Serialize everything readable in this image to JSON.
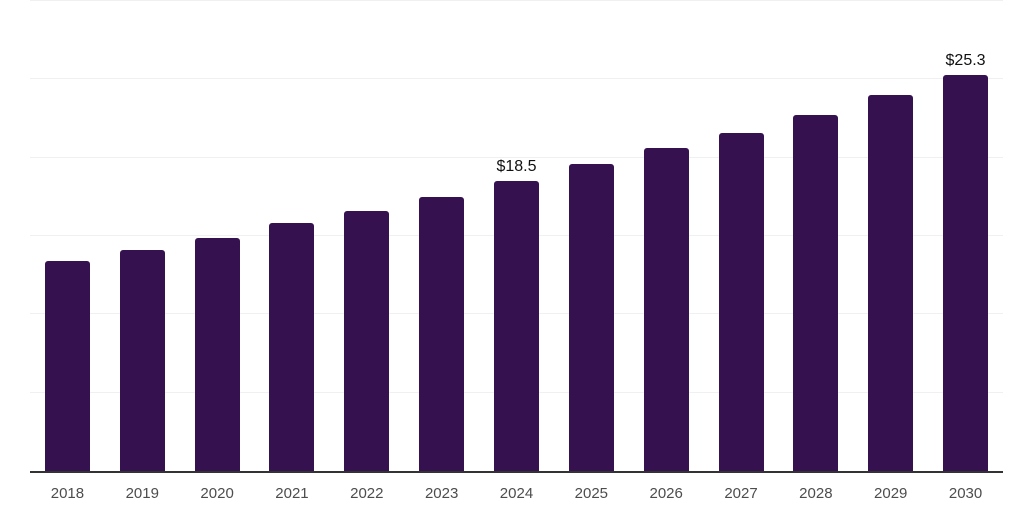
{
  "chart_data": {
    "type": "bar",
    "title": "",
    "xlabel": "",
    "ylabel": "",
    "categories": [
      "2018",
      "2019",
      "2020",
      "2021",
      "2022",
      "2023",
      "2024",
      "2025",
      "2026",
      "2027",
      "2028",
      "2029",
      "2030"
    ],
    "values": [
      13.4,
      14.1,
      14.9,
      15.8,
      16.6,
      17.5,
      18.5,
      19.6,
      20.6,
      21.6,
      22.7,
      24.0,
      25.3
    ],
    "annotations": [
      {
        "category": "2024",
        "label": "$18.5"
      },
      {
        "category": "2030",
        "label": "$25.3"
      }
    ],
    "ylim": [
      0,
      30
    ],
    "grid_step": 5,
    "grid": "horizontal",
    "legend": "none",
    "colors": {
      "bar": "#351150",
      "grid": "#f0f0f2",
      "axis": "#333333",
      "tick_label": "#4d4d4d",
      "value_label": "#111111",
      "background": "#ffffff"
    }
  }
}
